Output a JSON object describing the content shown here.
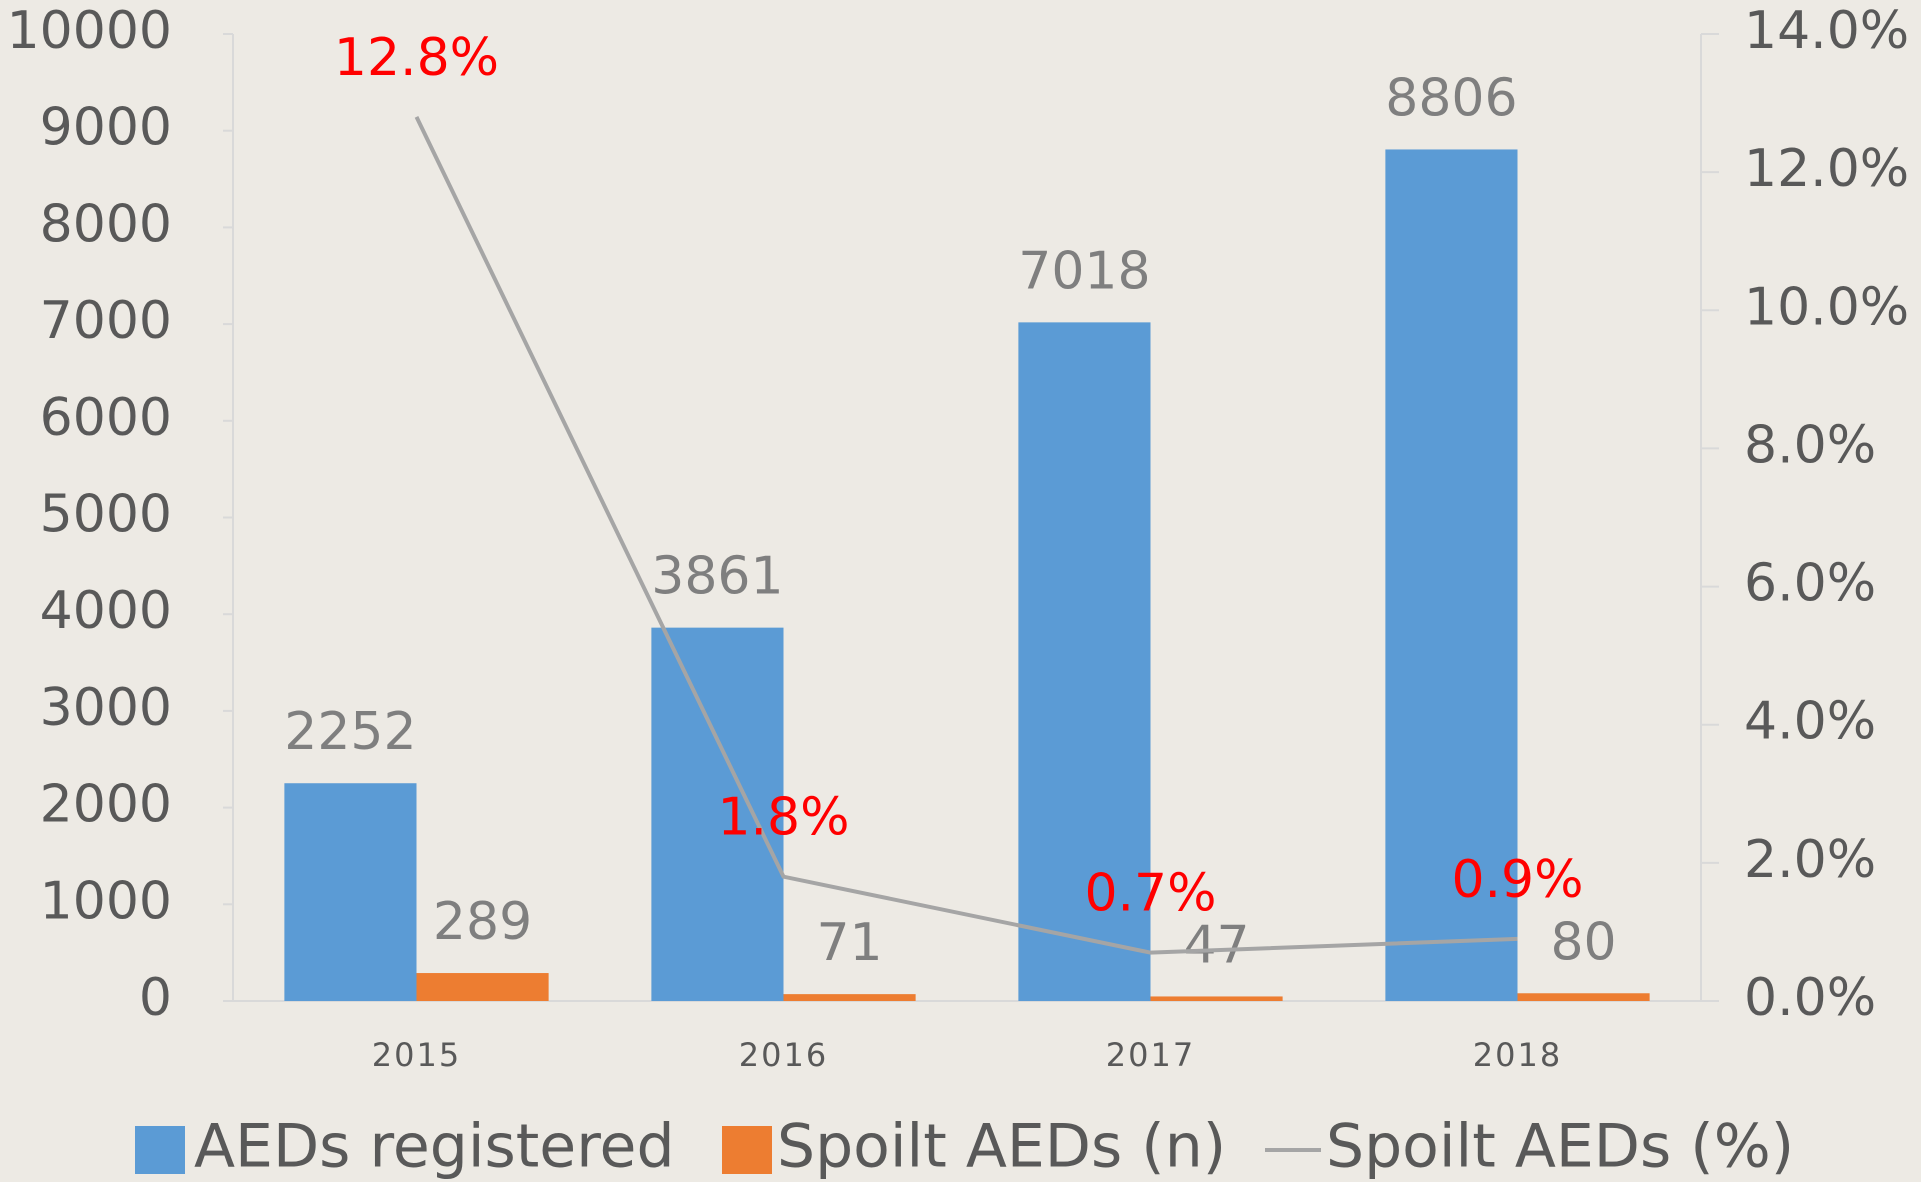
{
  "chart_data": {
    "type": "bar_line",
    "categories": [
      "2015",
      "2016",
      "2017",
      "2018"
    ],
    "series": [
      {
        "name": "AEDs registered",
        "type": "bar",
        "color": "#5b9bd5",
        "values": [
          2252,
          3861,
          7018,
          8806
        ]
      },
      {
        "name": "Spoilt AEDs (n)",
        "type": "bar",
        "color": "#ed7d31",
        "values": [
          289,
          71,
          47,
          80
        ]
      },
      {
        "name": "Spoilt AEDs (%)",
        "type": "line",
        "axis": "y2",
        "color": "#a5a5a5",
        "label_color": "#ff0000",
        "values": [
          12.8,
          1.8,
          0.7,
          0.9
        ],
        "value_labels": [
          "12.8%",
          "1.8%",
          "0.7%",
          "0.9%"
        ]
      }
    ],
    "ylim": [
      0,
      10000
    ],
    "yticks": [
      0,
      1000,
      2000,
      3000,
      4000,
      5000,
      6000,
      7000,
      8000,
      9000,
      10000
    ],
    "y2lim": [
      0,
      14
    ],
    "y2ticks": [
      {
        "value": 0,
        "label": "0.0%"
      },
      {
        "value": 2,
        "label": "2.0%"
      },
      {
        "value": 4,
        "label": "4.0%"
      },
      {
        "value": 6,
        "label": "6.0%"
      },
      {
        "value": 8,
        "label": "8.0%"
      },
      {
        "value": 10,
        "label": "10.0%"
      },
      {
        "value": 12,
        "label": "12.0%"
      },
      {
        "value": 14,
        "label": "14.0%"
      }
    ],
    "legend": "bottom",
    "grid": false
  }
}
